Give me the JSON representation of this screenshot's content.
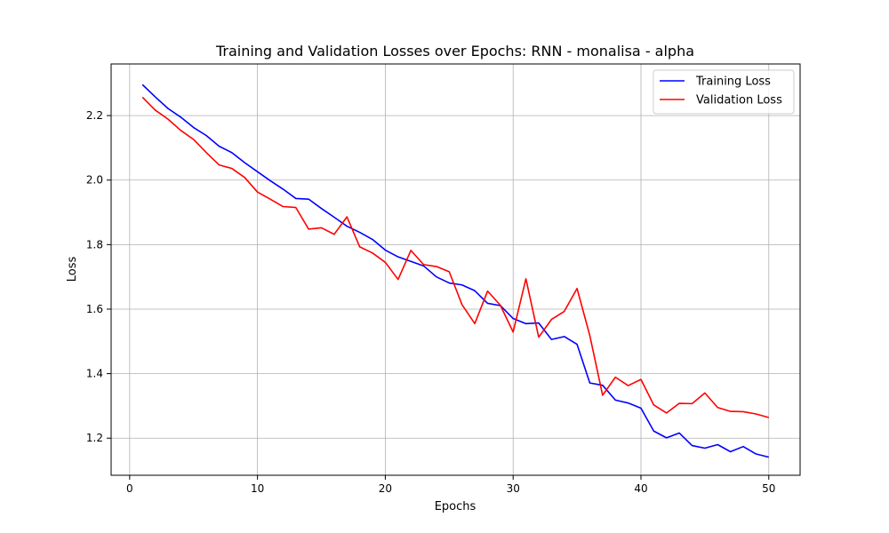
{
  "chart_data": {
    "type": "line",
    "title": "Training and Validation Losses over Epochs: RNN - monalisa - alpha",
    "xlabel": "Epochs",
    "ylabel": "Loss",
    "xlim": [
      -1.45,
      52.45
    ],
    "ylim": [
      1.085,
      2.36
    ],
    "xticks": [
      0,
      10,
      20,
      30,
      40,
      50
    ],
    "yticks": [
      1.2,
      1.4,
      1.6,
      1.8,
      2.0,
      2.2
    ],
    "grid": true,
    "legend_position": "top-right",
    "x": [
      1,
      2,
      3,
      4,
      5,
      6,
      7,
      8,
      9,
      10,
      11,
      12,
      13,
      14,
      15,
      16,
      17,
      18,
      19,
      20,
      21,
      22,
      23,
      24,
      25,
      26,
      27,
      28,
      29,
      30,
      31,
      32,
      33,
      34,
      35,
      36,
      37,
      38,
      39,
      40,
      41,
      42,
      43,
      44,
      45,
      46,
      47,
      48,
      49,
      50
    ],
    "series": [
      {
        "name": "Training Loss",
        "color": "#0000ff",
        "values": [
          2.296,
          2.258,
          2.222,
          2.195,
          2.163,
          2.138,
          2.105,
          2.085,
          2.054,
          2.026,
          1.998,
          1.972,
          1.943,
          1.941,
          1.912,
          1.885,
          1.857,
          1.838,
          1.816,
          1.783,
          1.762,
          1.748,
          1.734,
          1.7,
          1.681,
          1.675,
          1.657,
          1.618,
          1.611,
          1.571,
          1.555,
          1.557,
          1.506,
          1.515,
          1.491,
          1.371,
          1.364,
          1.318,
          1.309,
          1.293,
          1.222,
          1.201,
          1.216,
          1.177,
          1.169,
          1.18,
          1.158,
          1.174,
          1.151,
          1.141
        ]
      },
      {
        "name": "Validation Loss",
        "color": "#ff0000",
        "values": [
          2.257,
          2.217,
          2.189,
          2.154,
          2.126,
          2.085,
          2.047,
          2.036,
          2.008,
          1.963,
          1.941,
          1.918,
          1.915,
          1.848,
          1.852,
          1.832,
          1.886,
          1.793,
          1.774,
          1.745,
          1.692,
          1.782,
          1.738,
          1.732,
          1.716,
          1.614,
          1.555,
          1.656,
          1.612,
          1.529,
          1.694,
          1.513,
          1.568,
          1.593,
          1.664,
          1.518,
          1.333,
          1.389,
          1.363,
          1.382,
          1.303,
          1.278,
          1.308,
          1.307,
          1.34,
          1.295,
          1.283,
          1.282,
          1.275,
          1.264
        ]
      }
    ]
  }
}
